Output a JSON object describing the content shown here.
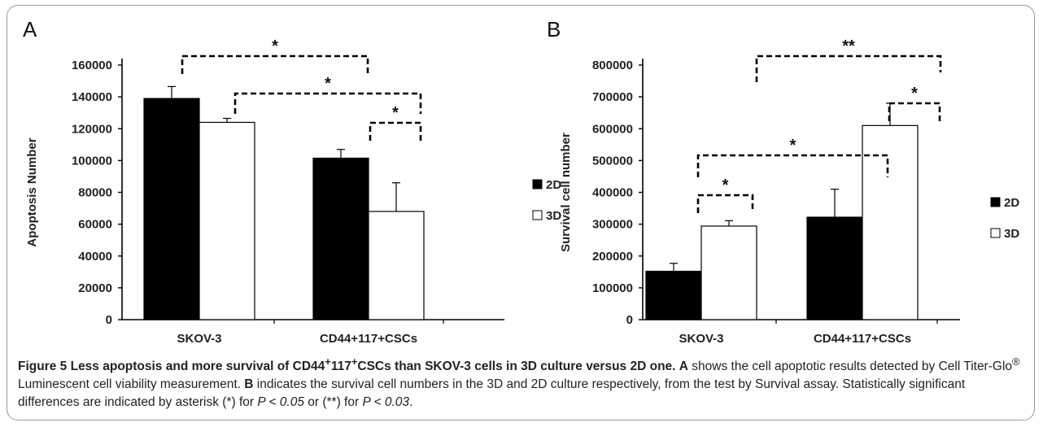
{
  "chart_data": [
    {
      "panel": "A",
      "type": "bar",
      "categories": [
        "SKOV-3",
        "CD44+117+CSCs"
      ],
      "ylabel": "Apoptosis Number",
      "xlabel": "",
      "ylim": [
        0,
        160000
      ],
      "yticks": [
        0,
        20000,
        40000,
        60000,
        80000,
        100000,
        120000,
        140000,
        160000
      ],
      "series": [
        {
          "name": "2D",
          "values": [
            139000,
            101500
          ],
          "errors": [
            7500,
            5500
          ],
          "color": "#000000"
        },
        {
          "name": "3D",
          "values": [
            124000,
            68000
          ],
          "errors": [
            2500,
            18000
          ],
          "color": "#ffffff"
        }
      ],
      "significance": [
        {
          "from": "SKOV-3 2D",
          "to": "CD44+117+CSCs 2D",
          "label": "*"
        },
        {
          "from": "SKOV-3 3D",
          "to": "CD44+117+CSCs 3D",
          "label": "*"
        },
        {
          "from": "CD44+117+CSCs 2D",
          "to": "CD44+117+CSCs 3D",
          "label": "*"
        }
      ],
      "legend": "right",
      "grid": false
    },
    {
      "panel": "B",
      "type": "bar",
      "categories": [
        "SKOV-3",
        "CD44+117+CSCs"
      ],
      "ylabel": "Survival cell number",
      "xlabel": "",
      "ylim": [
        0,
        800000
      ],
      "yticks": [
        0,
        100000,
        200000,
        300000,
        400000,
        500000,
        600000,
        700000,
        800000
      ],
      "series": [
        {
          "name": "2D",
          "values": [
            152000,
            322000
          ],
          "errors": [
            25000,
            88000
          ],
          "color": "#000000"
        },
        {
          "name": "3D",
          "values": [
            294000,
            610000
          ],
          "errors": [
            17000,
            70000
          ],
          "color": "#ffffff"
        }
      ],
      "significance": [
        {
          "from": "SKOV-3 2D",
          "to": "SKOV-3 3D",
          "label": "*"
        },
        {
          "from": "SKOV-3 2D",
          "to": "CD44+117+CSCs 2D",
          "label": "*"
        },
        {
          "from": "CD44+117+CSCs 2D",
          "to": "CD44+117+CSCs 3D",
          "label": "*"
        },
        {
          "from": "SKOV-3 3D",
          "to": "CD44+117+CSCs 3D",
          "label": "**"
        }
      ],
      "legend": "right",
      "grid": false
    }
  ],
  "caption": {
    "title_part1": "Figure 5 Less apoptosis and more survival of CD44",
    "sup1": "+",
    "title_part2": "117",
    "sup2": "+",
    "title_part3": "CSCs than SKOV-3 cells in 3D culture versus 2D one.",
    "label_a": "A",
    "text_a": " shows the cell apoptotic results detected by Cell Titer-Glo",
    "reg": "®",
    "text_a2": " Luminescent cell viability measurement.",
    "label_b": "B",
    "text_b": " indicates the survival cell numbers in the 3D and 2D culture respectively, from the test by Survival assay. Statistically significant differences are indicated by asterisk (*) for ",
    "p1": "P < 0.05",
    "text_or": " or (**) for ",
    "p2": "P < 0.03",
    "end": "."
  }
}
